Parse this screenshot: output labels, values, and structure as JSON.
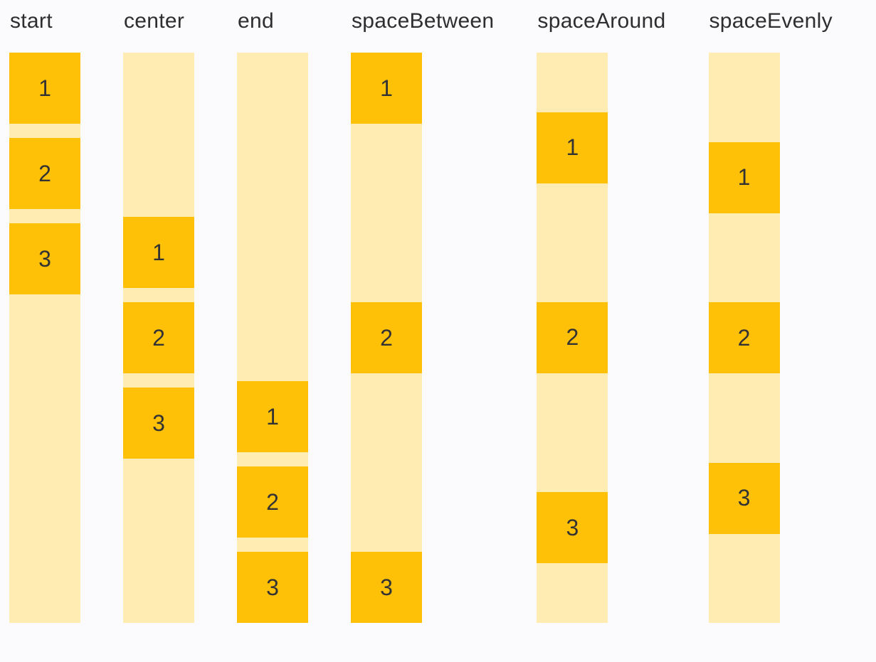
{
  "page": {
    "background": "#FBFBFE",
    "description_labels_present": [
      "start",
      "center",
      "end",
      "spaceBetween",
      "spaceAround",
      "spaceEvenly"
    ]
  },
  "colors": {
    "background": "#FBFBFE",
    "track_background": "#FFECB3",
    "item_background": "#FFC107",
    "label_text": "#2E2E2E",
    "item_number_text": "#333333"
  },
  "columns": [
    {
      "label": "start",
      "items": [
        "1",
        "2",
        "3"
      ]
    },
    {
      "label": "center",
      "items": [
        "1",
        "2",
        "3"
      ]
    },
    {
      "label": "end",
      "items": [
        "1",
        "2",
        "3"
      ]
    },
    {
      "label": "spaceBetween",
      "items": [
        "1",
        "2",
        "3"
      ]
    },
    {
      "label": "spaceAround",
      "items": [
        "1",
        "2",
        "3"
      ]
    },
    {
      "label": "spaceEvenly",
      "items": [
        "1",
        "2",
        "3"
      ]
    }
  ]
}
